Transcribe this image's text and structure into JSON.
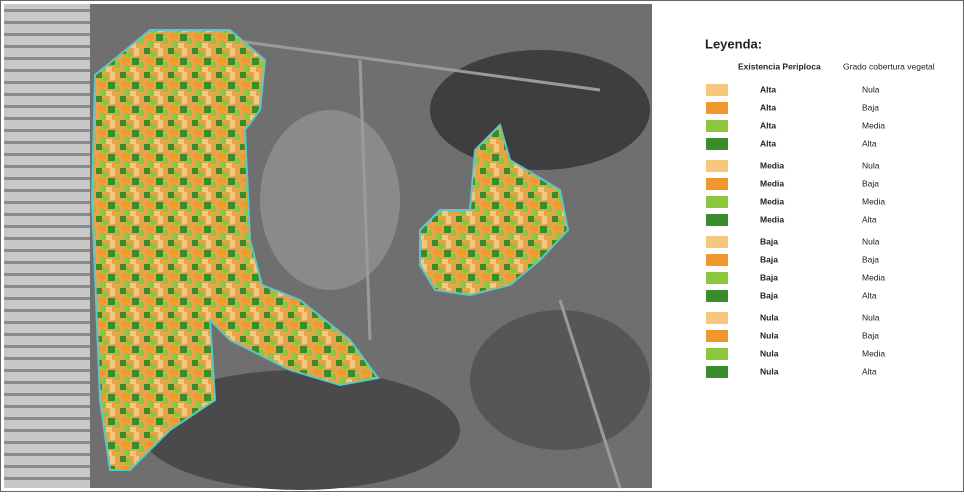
{
  "legend": {
    "title": "Leyenda:",
    "header_existencia": "Existencia Periploca",
    "header_grado": "Grado cobertura vegetal",
    "rows": [
      {
        "existencia": "Alta",
        "grado": "Nula",
        "color": "#f6c77f"
      },
      {
        "existencia": "Alta",
        "grado": "Baja",
        "color": "#f0982e"
      },
      {
        "existencia": "Alta",
        "grado": "Media",
        "color": "#8dc63f"
      },
      {
        "existencia": "Alta",
        "grado": "Alta",
        "color": "#3b8c2c"
      },
      {
        "existencia": "Media",
        "grado": "Nula",
        "color": "#f6c77f"
      },
      {
        "existencia": "Media",
        "grado": "Baja",
        "color": "#f0982e"
      },
      {
        "existencia": "Media",
        "grado": "Media",
        "color": "#8dc63f"
      },
      {
        "existencia": "Media",
        "grado": "Alta",
        "color": "#3b8c2c"
      },
      {
        "existencia": "Baja",
        "grado": "Nula",
        "color": "#f6c77f"
      },
      {
        "existencia": "Baja",
        "grado": "Baja",
        "color": "#f0982e"
      },
      {
        "existencia": "Baja",
        "grado": "Media",
        "color": "#8dc63f"
      },
      {
        "existencia": "Baja",
        "grado": "Alta",
        "color": "#3b8c2c"
      },
      {
        "existencia": "Nula",
        "grado": "Nula",
        "color": "#f6c77f"
      },
      {
        "existencia": "Nula",
        "grado": "Baja",
        "color": "#f0982e"
      },
      {
        "existencia": "Nula",
        "grado": "Media",
        "color": "#8dc63f"
      },
      {
        "existencia": "Nula",
        "grado": "Alta",
        "color": "#3b8c2c"
      }
    ]
  }
}
